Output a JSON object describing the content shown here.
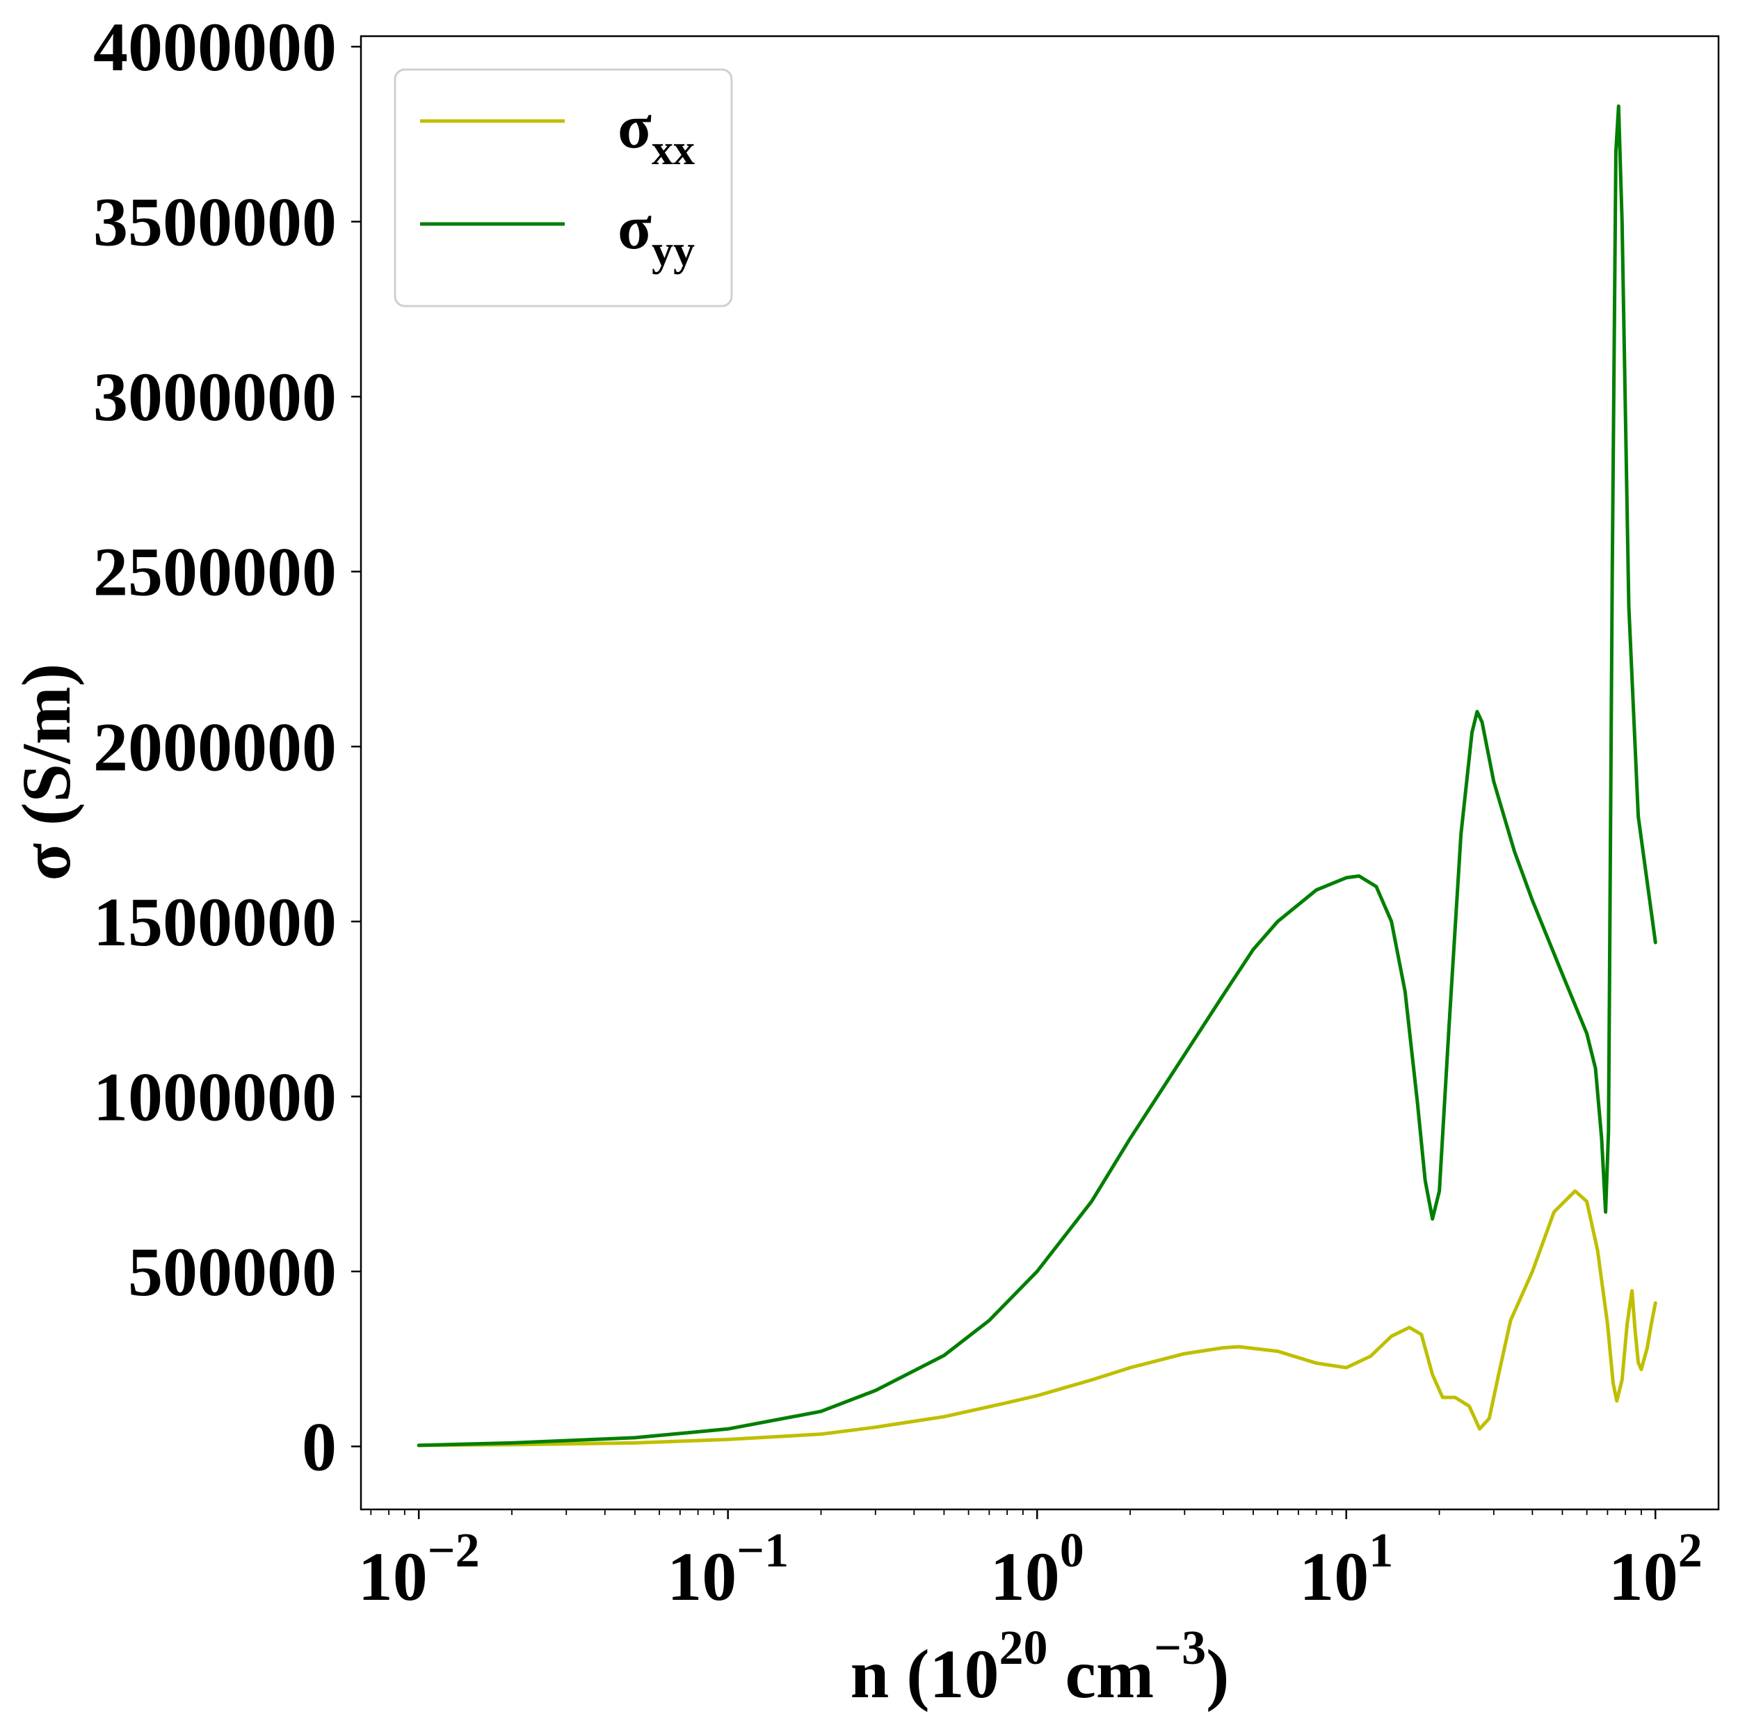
{
  "chart_data": {
    "type": "line",
    "xscale": "log",
    "xlabel": {
      "base": "n (10",
      "exp1": "20",
      "mid": " cm",
      "exp2": "−3",
      "end": ")"
    },
    "ylabel": "σ (S/m)",
    "xlim": [
      0.0065,
      160
    ],
    "ylim": [
      -180000,
      4030000
    ],
    "xticks": [
      {
        "value": 0.01,
        "base": "10",
        "exp": "−2"
      },
      {
        "value": 0.1,
        "base": "10",
        "exp": "−1"
      },
      {
        "value": 1,
        "base": "10",
        "exp": "0"
      },
      {
        "value": 10,
        "base": "10",
        "exp": "1"
      },
      {
        "value": 100,
        "base": "10",
        "exp": "2"
      }
    ],
    "yticks": [
      {
        "value": 0,
        "label": "0"
      },
      {
        "value": 500000,
        "label": "500000"
      },
      {
        "value": 1000000,
        "label": "1000000"
      },
      {
        "value": 1500000,
        "label": "1500000"
      },
      {
        "value": 2000000,
        "label": "2000000"
      },
      {
        "value": 2500000,
        "label": "2500000"
      },
      {
        "value": 3000000,
        "label": "3000000"
      },
      {
        "value": 3500000,
        "label": "3500000"
      },
      {
        "value": 4000000,
        "label": "4000000"
      }
    ],
    "grid": false,
    "legend_position": "top-left",
    "series": [
      {
        "name": "σ",
        "subscript": "xx",
        "color": "#bfbf00",
        "points": [
          [
            0.01,
            3000
          ],
          [
            0.02,
            5000
          ],
          [
            0.05,
            10000
          ],
          [
            0.1,
            20000
          ],
          [
            0.2,
            35000
          ],
          [
            0.3,
            55000
          ],
          [
            0.5,
            85000
          ],
          [
            0.8,
            125000
          ],
          [
            1.0,
            145000
          ],
          [
            1.5,
            190000
          ],
          [
            2.0,
            225000
          ],
          [
            3.0,
            265000
          ],
          [
            4.0,
            282000
          ],
          [
            4.5,
            285000
          ],
          [
            6.0,
            272000
          ],
          [
            8.0,
            238000
          ],
          [
            10.0,
            225000
          ],
          [
            12.0,
            258000
          ],
          [
            14.0,
            315000
          ],
          [
            16.0,
            340000
          ],
          [
            17.5,
            320000
          ],
          [
            19.0,
            205000
          ],
          [
            20.5,
            140000
          ],
          [
            22.5,
            140000
          ],
          [
            25.0,
            115000
          ],
          [
            27.0,
            50000
          ],
          [
            29.0,
            80000
          ],
          [
            31.0,
            200000
          ],
          [
            34.0,
            360000
          ],
          [
            40.0,
            500000
          ],
          [
            47.0,
            670000
          ],
          [
            55.0,
            730000
          ],
          [
            60.0,
            700000
          ],
          [
            65.0,
            560000
          ],
          [
            70.0,
            350000
          ],
          [
            73.0,
            180000
          ],
          [
            75.0,
            130000
          ],
          [
            78.0,
            190000
          ],
          [
            81.0,
            350000
          ],
          [
            84.0,
            445000
          ],
          [
            86.0,
            330000
          ],
          [
            88.0,
            240000
          ],
          [
            90.0,
            220000
          ],
          [
            94.0,
            280000
          ],
          [
            97.0,
            350000
          ],
          [
            100.0,
            410000
          ]
        ]
      },
      {
        "name": "σ",
        "subscript": "yy",
        "color": "#007f00",
        "points": [
          [
            0.01,
            3000
          ],
          [
            0.02,
            10000
          ],
          [
            0.05,
            25000
          ],
          [
            0.1,
            50000
          ],
          [
            0.2,
            100000
          ],
          [
            0.3,
            160000
          ],
          [
            0.5,
            260000
          ],
          [
            0.7,
            360000
          ],
          [
            1.0,
            500000
          ],
          [
            1.5,
            700000
          ],
          [
            2.0,
            880000
          ],
          [
            3.0,
            1120000
          ],
          [
            4.0,
            1290000
          ],
          [
            5.0,
            1420000
          ],
          [
            6.0,
            1500000
          ],
          [
            8.0,
            1590000
          ],
          [
            10.0,
            1625000
          ],
          [
            11.0,
            1630000
          ],
          [
            12.5,
            1600000
          ],
          [
            14.0,
            1500000
          ],
          [
            15.5,
            1300000
          ],
          [
            17.0,
            980000
          ],
          [
            18.0,
            760000
          ],
          [
            19.0,
            650000
          ],
          [
            20.0,
            730000
          ],
          [
            21.5,
            1200000
          ],
          [
            23.5,
            1750000
          ],
          [
            25.5,
            2040000
          ],
          [
            26.5,
            2100000
          ],
          [
            27.5,
            2070000
          ],
          [
            30.0,
            1900000
          ],
          [
            35.0,
            1700000
          ],
          [
            40.0,
            1560000
          ],
          [
            50.0,
            1350000
          ],
          [
            60.0,
            1180000
          ],
          [
            64.0,
            1080000
          ],
          [
            67.0,
            880000
          ],
          [
            69.0,
            670000
          ],
          [
            70.5,
            900000
          ],
          [
            72.5,
            2500000
          ],
          [
            74.5,
            3700000
          ],
          [
            76.0,
            3830000
          ],
          [
            78.0,
            3500000
          ],
          [
            82.0,
            2400000
          ],
          [
            88.0,
            1800000
          ],
          [
            100.0,
            1440000
          ]
        ]
      }
    ]
  }
}
